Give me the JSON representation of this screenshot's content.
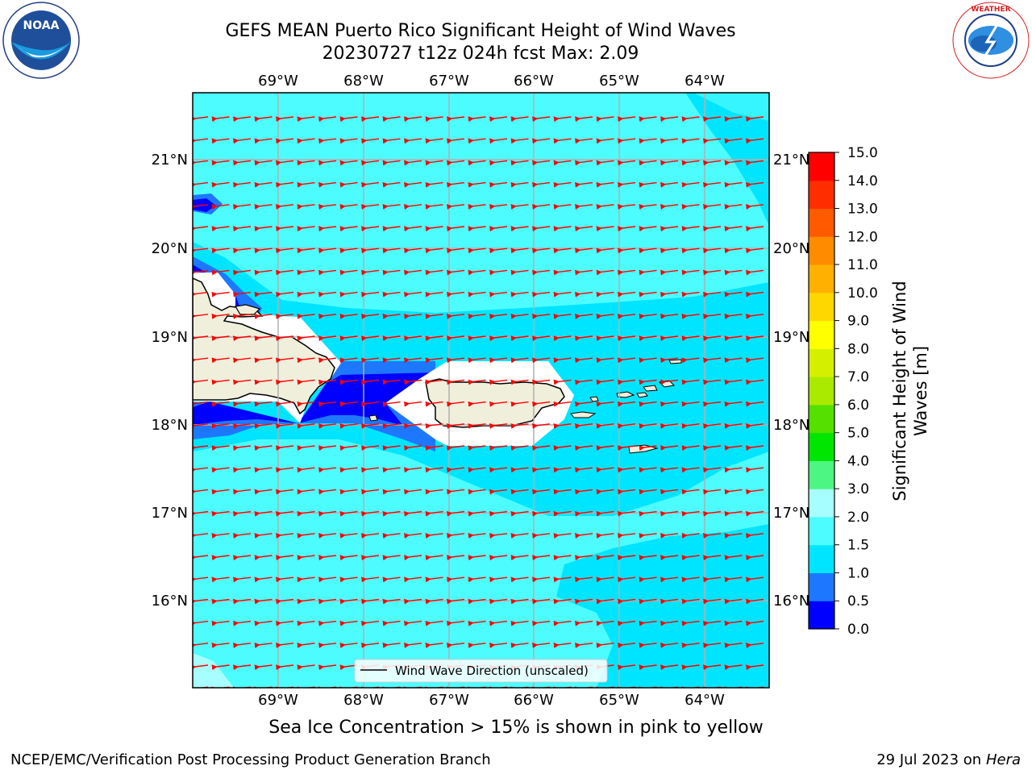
{
  "title": {
    "line1": "GEFS MEAN Puerto Rico Significant Height of Wind Waves",
    "line2": "20230727 t12z 024h fcst   Max: 2.09"
  },
  "logos": {
    "left": {
      "name": "NOAA",
      "ring_text": "NATIONAL OCEANIC AND ATMOSPHERIC ADMINISTRATION · U.S. DEPARTMENT OF COMMERCE"
    },
    "right": {
      "name": "NATIONAL WEATHER SERVICE"
    }
  },
  "map": {
    "lon_labels": [
      "69°W",
      "68°W",
      "67°W",
      "66°W",
      "65°W",
      "64°W"
    ],
    "lat_labels": [
      "21°N",
      "20°N",
      "19°N",
      "18°N",
      "17°N",
      "16°N"
    ],
    "legend_label": "Wind Wave Direction (unscaled)",
    "colors": {
      "band_0_0_5": "#0000ff",
      "band_0_5_1_0": "#1e78ff",
      "band_1_0_1_5": "#00e5ff",
      "band_1_5_2_0": "#4dfcff",
      "band_2_0_3_0": "#a6fffe",
      "land": "#efefdb",
      "grid": "#b0b0b0",
      "arrow": "#ff0000"
    }
  },
  "colorbar": {
    "label_line1": "Significant Height of Wind",
    "label_line2": "Waves [m]",
    "ticks": [
      "0.0",
      "0.5",
      "1.0",
      "1.5",
      "2.0",
      "3.0",
      "4.0",
      "5.0",
      "6.0",
      "7.0",
      "8.0",
      "9.0",
      "10.0",
      "11.0",
      "12.0",
      "13.0",
      "14.0",
      "15.0"
    ],
    "colors": [
      "#0000ff",
      "#1e78ff",
      "#00e5ff",
      "#4dfcff",
      "#a6fffe",
      "#4df582",
      "#00e600",
      "#55e000",
      "#aaea00",
      "#d4f000",
      "#ffff00",
      "#ffd700",
      "#ffb000",
      "#ff8c00",
      "#ff5a00",
      "#ff2d00",
      "#ff0000"
    ]
  },
  "notes": {
    "sea_ice": "Sea Ice Concentration > 15% is shown in pink to yellow"
  },
  "footer": {
    "left": "NCEP/EMC/Verification Post Processing Product Generation Branch",
    "right_date": "29 Jul 2023 on",
    "right_host": "Hera"
  }
}
